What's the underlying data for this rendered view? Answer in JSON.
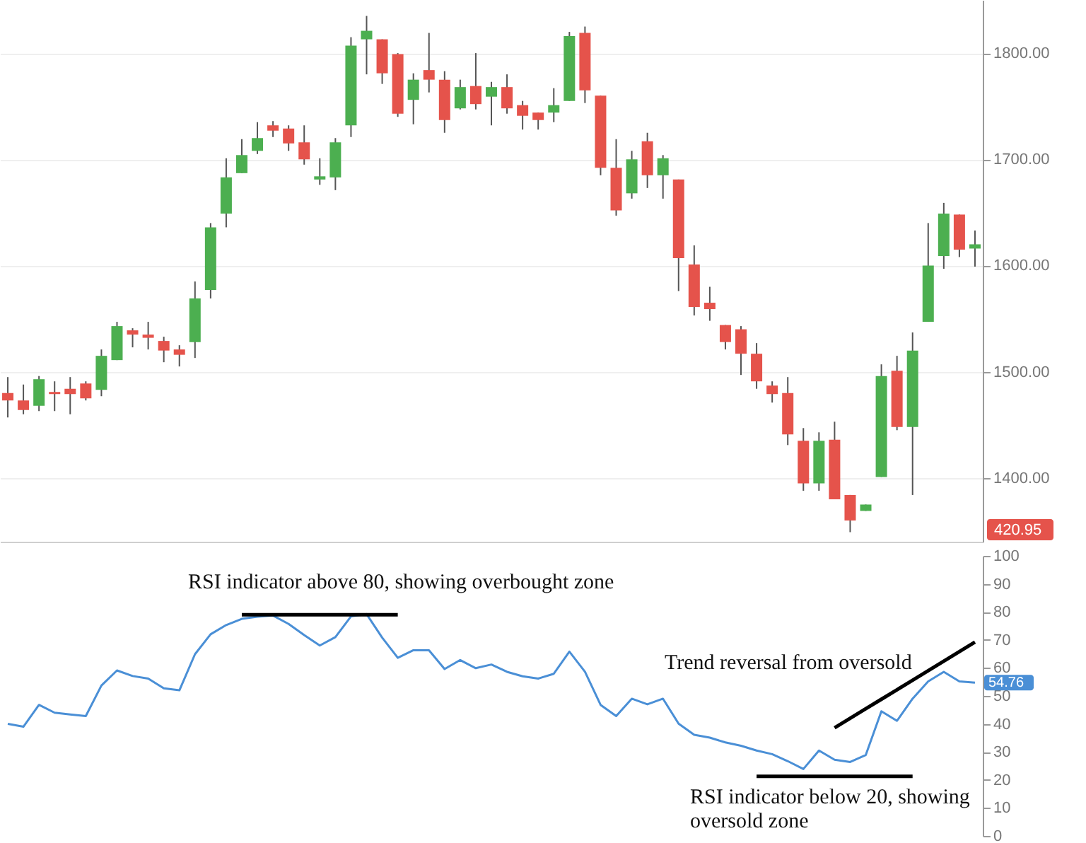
{
  "chart_data": [
    {
      "type": "candlestick",
      "categories": [
        null,
        null,
        null,
        null,
        null,
        null,
        null,
        null,
        null,
        null,
        null,
        null,
        null,
        null,
        null,
        null,
        null,
        null,
        null,
        null,
        null,
        null,
        null,
        null,
        null,
        null,
        null,
        null,
        null,
        null,
        null,
        null,
        null,
        null,
        null,
        null,
        null,
        null,
        null,
        null,
        null,
        null,
        null,
        null,
        null,
        null,
        null,
        null,
        null,
        null,
        null,
        null,
        null,
        null,
        null,
        null,
        null,
        null,
        null,
        null,
        null,
        null,
        null
      ],
      "ohlc": [
        [
          1480,
          1495,
          1457,
          1473
        ],
        [
          1473,
          1488,
          1460,
          1464
        ],
        [
          1468,
          1496,
          1463,
          1493
        ],
        [
          1481,
          1491,
          1463,
          1479
        ],
        [
          1484,
          1495,
          1460,
          1479
        ],
        [
          1489,
          1491,
          1473,
          1475
        ],
        [
          1483,
          1521,
          1477,
          1515
        ],
        [
          1511,
          1547,
          1511,
          1543
        ],
        [
          1539,
          1541,
          1523,
          1535
        ],
        [
          1535,
          1547,
          1521,
          1532
        ],
        [
          1529,
          1533,
          1509,
          1520
        ],
        [
          1521,
          1525,
          1505,
          1516
        ],
        [
          1528,
          1585,
          1513,
          1569
        ],
        [
          1577,
          1640,
          1569,
          1636
        ],
        [
          1649,
          1701,
          1636,
          1683
        ],
        [
          1687,
          1719,
          1687,
          1704
        ],
        [
          1708,
          1735,
          1705,
          1720
        ],
        [
          1732,
          1736,
          1721,
          1727
        ],
        [
          1729,
          1732,
          1708,
          1715
        ],
        [
          1716,
          1732,
          1695,
          1700
        ],
        [
          1681,
          1701,
          1676,
          1684
        ],
        [
          1683,
          1720,
          1671,
          1716
        ],
        [
          1732,
          1815,
          1721,
          1807
        ],
        [
          1813,
          1835,
          1780,
          1821
        ],
        [
          1813,
          1813,
          1771,
          1781
        ],
        [
          1799,
          1800,
          1740,
          1743
        ],
        [
          1756,
          1781,
          1733,
          1775
        ],
        [
          1784,
          1819,
          1763,
          1775
        ],
        [
          1775,
          1783,
          1725,
          1737
        ],
        [
          1748,
          1775,
          1747,
          1768
        ],
        [
          1769,
          1800,
          1747,
          1752
        ],
        [
          1759,
          1773,
          1732,
          1768
        ],
        [
          1768,
          1780,
          1743,
          1748
        ],
        [
          1751,
          1755,
          1728,
          1741
        ],
        [
          1744,
          1744,
          1728,
          1737
        ],
        [
          1744,
          1767,
          1735,
          1751
        ],
        [
          1755,
          1820,
          1755,
          1816
        ],
        [
          1819,
          1825,
          1753,
          1765
        ],
        [
          1760,
          1760,
          1685,
          1692
        ],
        [
          1692,
          1719,
          1647,
          1652
        ],
        [
          1668,
          1708,
          1663,
          1700
        ],
        [
          1717,
          1725,
          1673,
          1685
        ],
        [
          1685,
          1704,
          1663,
          1701
        ],
        [
          1681,
          1681,
          1576,
          1607
        ],
        [
          1601,
          1619,
          1553,
          1561
        ],
        [
          1565,
          1580,
          1548,
          1559
        ],
        [
          1544,
          1544,
          1521,
          1528
        ],
        [
          1540,
          1543,
          1497,
          1517
        ],
        [
          1517,
          1527,
          1484,
          1491
        ],
        [
          1487,
          1491,
          1471,
          1479
        ],
        [
          1480,
          1495,
          1431,
          1441
        ],
        [
          1435,
          1447,
          1388,
          1395
        ],
        [
          1395,
          1443,
          1388,
          1435
        ],
        [
          1436,
          1453,
          1380,
          1380
        ],
        [
          1384,
          1384,
          1349,
          1360
        ],
        [
          1369,
          1375,
          1369,
          1375
        ],
        [
          1401,
          1507,
          1401,
          1496
        ],
        [
          1501,
          1515,
          1445,
          1448
        ],
        [
          1448,
          1537,
          1384,
          1520
        ],
        [
          1547,
          1640,
          1547,
          1600
        ],
        [
          1609,
          1659,
          1597,
          1649
        ],
        [
          1648,
          1648,
          1608,
          1615
        ],
        [
          1616,
          1633,
          1599,
          1620
        ]
      ],
      "colors": [
        "#e5534b",
        "#e5534b",
        "#4caf50",
        "#e5534b",
        "#e5534b",
        "#e5534b",
        "#4caf50",
        "#4caf50",
        "#e5534b",
        "#e5534b",
        "#e5534b",
        "#e5534b",
        "#4caf50",
        "#4caf50",
        "#4caf50",
        "#4caf50",
        "#4caf50",
        "#e5534b",
        "#e5534b",
        "#e5534b",
        "#4caf50",
        "#4caf50",
        "#4caf50",
        "#4caf50",
        "#e5534b",
        "#e5534b",
        "#4caf50",
        "#e5534b",
        "#e5534b",
        "#4caf50",
        "#e5534b",
        "#4caf50",
        "#e5534b",
        "#e5534b",
        "#e5534b",
        "#4caf50",
        "#4caf50",
        "#e5534b",
        "#e5534b",
        "#e5534b",
        "#4caf50",
        "#e5534b",
        "#4caf50",
        "#e5534b",
        "#e5534b",
        "#e5534b",
        "#e5534b",
        "#e5534b",
        "#e5534b",
        "#e5534b",
        "#e5534b",
        "#e5534b",
        "#4caf50",
        "#e5534b",
        "#e5534b",
        "#4caf50",
        "#4caf50",
        "#e5534b",
        "#4caf50",
        "#4caf50",
        "#4caf50",
        "#e5534b",
        "#4caf50"
      ],
      "ylim": [
        1340,
        1850
      ],
      "yticks": [
        {
          "value": 1400,
          "label": "1400.00"
        },
        {
          "value": 1500,
          "label": "1500.00"
        },
        {
          "value": 1600,
          "label": "1600.00"
        },
        {
          "value": 1700,
          "label": "1700.00"
        },
        {
          "value": 1800,
          "label": "1800.00"
        }
      ],
      "grid": "y",
      "tick_labels": "y",
      "annotations": [
        "420.95"
      ]
    },
    {
      "type": "line",
      "categories": [
        null,
        null,
        null,
        null,
        null,
        null,
        null,
        null,
        null,
        null,
        null,
        null,
        null,
        null,
        null,
        null,
        null,
        null,
        null,
        null,
        null,
        null,
        null,
        null,
        null,
        null,
        null,
        null,
        null,
        null,
        null,
        null,
        null,
        null,
        null,
        null,
        null,
        null,
        null,
        null,
        null,
        null,
        null,
        null,
        null,
        null,
        null,
        null,
        null,
        null,
        null,
        null,
        null,
        null,
        null,
        null,
        null,
        null,
        null,
        null,
        null,
        null,
        null
      ],
      "ylim": [
        0,
        100
      ],
      "yticks": [
        0,
        10,
        20,
        30,
        40,
        50,
        60,
        70,
        80,
        90,
        100
      ],
      "tick_labels": "y",
      "series": [
        {
          "color": "#4a8fd6",
          "values": [
            40,
            39,
            46.8,
            44,
            43.4,
            42.8,
            53.7,
            59.1,
            57.1,
            56.2,
            52.7,
            52,
            64.9,
            72,
            75.3,
            77.5,
            78.3,
            78.7,
            75.7,
            71.7,
            68,
            71,
            78.4,
            79.2,
            70.8,
            63.6,
            66.3,
            66.3,
            59.6,
            62.8,
            59.9,
            61.2,
            58.6,
            57,
            56.2,
            57.9,
            65.8,
            58.6,
            46.8,
            42.8,
            49,
            47,
            49,
            40.1,
            36.1,
            35.1,
            33.4,
            32.2,
            30.5,
            29.2,
            26.7,
            23.9,
            30.5,
            27.2,
            26.4,
            28.9,
            44.5,
            41.1,
            49,
            55.2,
            58.6,
            55.2,
            54.76
          ],
          "value_labels": [
            null,
            null,
            null,
            null,
            null,
            null,
            null,
            null,
            null,
            null,
            null,
            null,
            null,
            null,
            null,
            null,
            null,
            null,
            null,
            null,
            null,
            null,
            null,
            null,
            null,
            null,
            null,
            null,
            null,
            null,
            null,
            null,
            null,
            null,
            null,
            null,
            null,
            null,
            null,
            null,
            null,
            null,
            null,
            null,
            null,
            null,
            null,
            null,
            null,
            null,
            null,
            null,
            null,
            null,
            null,
            null,
            null,
            null,
            null,
            null,
            null,
            null,
            "54.76"
          ]
        },
        {
          "color": "#000000",
          "values": [
            null,
            null,
            null,
            null,
            null,
            null,
            null,
            null,
            null,
            null,
            null,
            null,
            null,
            null,
            null,
            79,
            79,
            79,
            79,
            79,
            79,
            79,
            79,
            79,
            79,
            79,
            null,
            null,
            null,
            null,
            null,
            null,
            null,
            null,
            null,
            null,
            null,
            null,
            null,
            null,
            null,
            null,
            null,
            null,
            null,
            null,
            null,
            null,
            null,
            null,
            null,
            null,
            null,
            null,
            null,
            null,
            null,
            null,
            null,
            null,
            null,
            null,
            null
          ]
        },
        {
          "color": "#000000",
          "values": [
            null,
            null,
            null,
            null,
            null,
            null,
            null,
            null,
            null,
            null,
            null,
            null,
            null,
            null,
            null,
            null,
            null,
            null,
            null,
            null,
            null,
            null,
            null,
            null,
            null,
            null,
            null,
            null,
            null,
            null,
            null,
            null,
            null,
            null,
            null,
            null,
            null,
            null,
            null,
            null,
            null,
            null,
            null,
            null,
            null,
            null,
            null,
            null,
            21.3,
            21.3,
            21.3,
            21.3,
            21.3,
            21.3,
            21.3,
            21.3,
            21.3,
            21.3,
            21.3,
            null,
            null,
            null,
            null
          ]
        },
        {
          "color": "#000000",
          "values": [
            null,
            null,
            null,
            null,
            null,
            null,
            null,
            null,
            null,
            null,
            null,
            null,
            null,
            null,
            null,
            null,
            null,
            null,
            null,
            null,
            null,
            null,
            null,
            null,
            null,
            null,
            null,
            null,
            null,
            null,
            null,
            null,
            null,
            null,
            null,
            null,
            null,
            null,
            null,
            null,
            null,
            null,
            null,
            null,
            null,
            null,
            null,
            null,
            null,
            null,
            null,
            null,
            null,
            38.6,
            42.0,
            45.4,
            48.8,
            52.2,
            55.6,
            59.0,
            62.4,
            65.8,
            69.2
          ]
        }
      ],
      "annotations": [
        "RSI indicator above 80, showing overbought zone",
        "Trend reversal from oversold",
        "RSI indicator below 20, showing oversold zone"
      ]
    }
  ]
}
